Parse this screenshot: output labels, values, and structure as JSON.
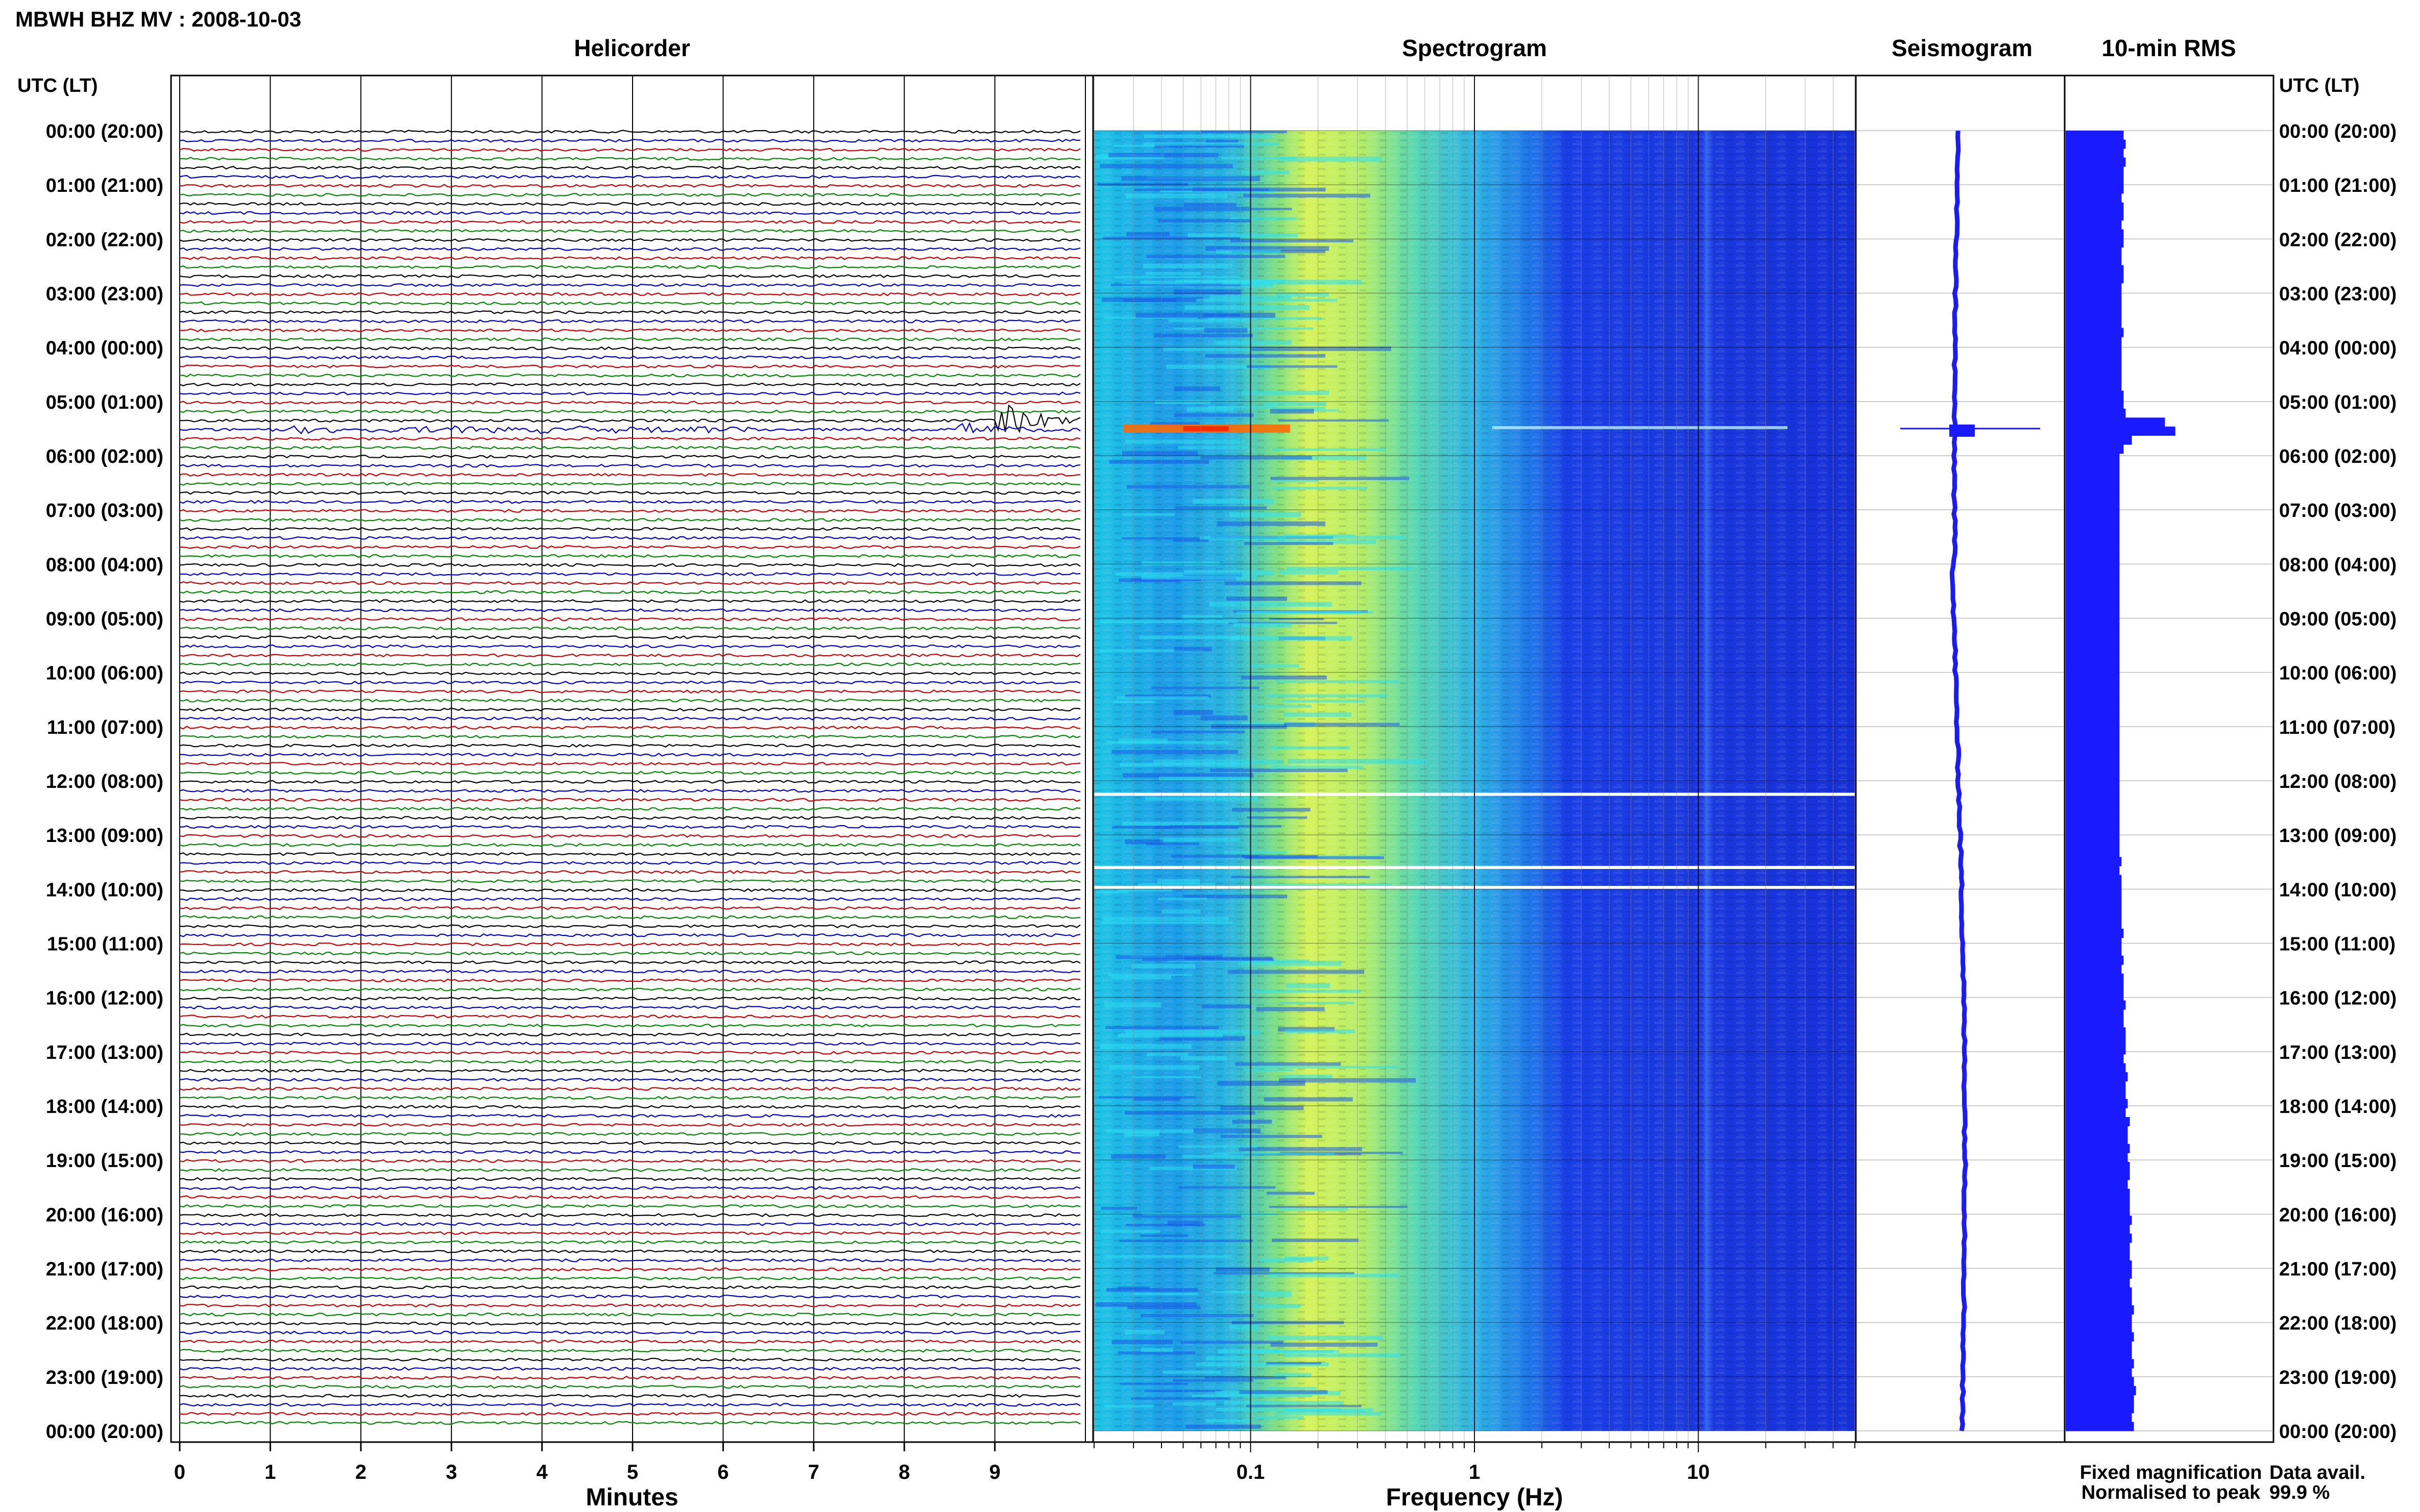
{
  "title": "MBWH BHZ MV : 2008-10-03",
  "panels": {
    "helicorder": "Helicorder",
    "spectrogram": "Spectrogram",
    "seismogram": "Seismogram",
    "rms": "10-min RMS"
  },
  "time_axis_header": "UTC (LT)",
  "helicorder_xlabel": "Minutes",
  "spectrogram_xlabel": "Frequency (Hz)",
  "legend": {
    "fixed": "Fixed magnification",
    "normalised": "Normalised to peak",
    "fixed_color": "#0000ff",
    "normalised_color": "#ff0000"
  },
  "data_avail": {
    "label": "Data avail.",
    "value": "99.9 %"
  },
  "chart_data": [
    {
      "type": "line",
      "name": "helicorder",
      "x_ticks": [
        "0",
        "1",
        "2",
        "3",
        "4",
        "5",
        "6",
        "7",
        "8",
        "9"
      ],
      "xlim": [
        0,
        10
      ],
      "rows_per_hour": 6,
      "hours": 24,
      "trace_colors": [
        "#000000",
        "#0000cc",
        "#cc0000",
        "#008800"
      ],
      "y_ticks": [
        "00:00 (20:00)",
        "01:00 (21:00)",
        "02:00 (22:00)",
        "03:00 (23:00)",
        "04:00 (00:00)",
        "05:00 (01:00)",
        "06:00 (02:00)",
        "07:00 (03:00)",
        "08:00 (04:00)",
        "09:00 (05:00)",
        "10:00 (06:00)",
        "11:00 (07:00)",
        "12:00 (08:00)",
        "13:00 (09:00)",
        "14:00 (10:00)",
        "15:00 (11:00)",
        "16:00 (12:00)",
        "17:00 (13:00)",
        "18:00 (14:00)",
        "19:00 (15:00)",
        "20:00 (16:00)",
        "21:00 (17:00)",
        "22:00 (18:00)",
        "23:00 (19:00)",
        "00:00 (20:00)"
      ],
      "events": [
        {
          "hour": 5.33,
          "minute": 9.0,
          "amplitude": "large"
        },
        {
          "hour": 5.5,
          "minute": 8.6,
          "amplitude": "medium"
        }
      ]
    },
    {
      "type": "heatmap",
      "name": "spectrogram",
      "x_scale": "log",
      "x_ticks": [
        "0.1",
        "1",
        "10"
      ],
      "xlim": [
        0.02,
        50
      ],
      "gaps_hours": [
        12.25,
        13.6,
        13.97
      ],
      "event_hour": 5.5
    },
    {
      "type": "line",
      "name": "seismogram",
      "event_hour": 5.5
    },
    {
      "type": "bar",
      "name": "rms",
      "bins_per_hour": 6,
      "values_relative": [
        0.28,
        0.29,
        0.28,
        0.29,
        0.28,
        0.28,
        0.28,
        0.27,
        0.28,
        0.28,
        0.27,
        0.28,
        0.28,
        0.27,
        0.27,
        0.28,
        0.28,
        0.27,
        0.27,
        0.27,
        0.27,
        0.27,
        0.28,
        0.27,
        0.27,
        0.27,
        0.27,
        0.27,
        0.27,
        0.28,
        0.28,
        0.29,
        0.48,
        0.53,
        0.32,
        0.28,
        0.26,
        0.26,
        0.26,
        0.26,
        0.26,
        0.26,
        0.26,
        0.26,
        0.26,
        0.26,
        0.26,
        0.26,
        0.26,
        0.26,
        0.26,
        0.26,
        0.26,
        0.26,
        0.26,
        0.26,
        0.26,
        0.26,
        0.26,
        0.26,
        0.26,
        0.26,
        0.26,
        0.26,
        0.26,
        0.26,
        0.26,
        0.26,
        0.26,
        0.26,
        0.26,
        0.26,
        0.26,
        0.26,
        0.26,
        0.26,
        0.26,
        0.26,
        0.26,
        0.26,
        0.26,
        0.27,
        0.26,
        0.27,
        0.27,
        0.27,
        0.27,
        0.27,
        0.27,
        0.28,
        0.27,
        0.27,
        0.28,
        0.27,
        0.28,
        0.28,
        0.28,
        0.29,
        0.28,
        0.28,
        0.29,
        0.29,
        0.29,
        0.28,
        0.29,
        0.3,
        0.29,
        0.29,
        0.3,
        0.29,
        0.31,
        0.3,
        0.3,
        0.31,
        0.3,
        0.31,
        0.31,
        0.3,
        0.31,
        0.31,
        0.31,
        0.32,
        0.31,
        0.32,
        0.31,
        0.31,
        0.32,
        0.32,
        0.31,
        0.32,
        0.32,
        0.33,
        0.32,
        0.32,
        0.33,
        0.32,
        0.32,
        0.33,
        0.32,
        0.33,
        0.34,
        0.33,
        0.33,
        0.32,
        0.33
      ]
    }
  ]
}
